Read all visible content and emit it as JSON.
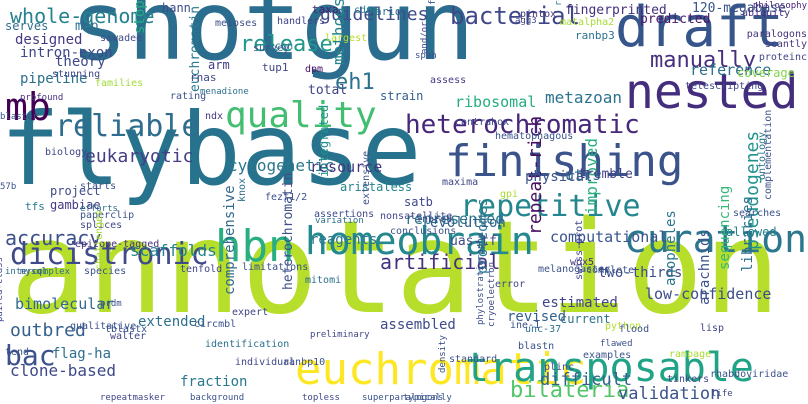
{
  "title": "",
  "words": [
    {
      "text": "shotgun",
      "color": "#2b6d8e",
      "vertical": false
    },
    {
      "text": "annotation",
      "color": "#b7de2a",
      "vertical": false
    },
    {
      "text": "flybase",
      "color": "#27738d",
      "vertical": false
    },
    {
      "text": "draft",
      "color": "#36558b",
      "vertical": false
    },
    {
      "text": "nested",
      "color": "#432d7c",
      "vertical": false
    },
    {
      "text": "finishing",
      "color": "#3a538b",
      "vertical": false
    },
    {
      "text": "heterochromatic",
      "color": "#46277a",
      "vertical": false
    },
    {
      "text": "homeobrain",
      "color": "#23898e",
      "vertical": false
    },
    {
      "text": "euchromatic",
      "color": "#fde725",
      "vertical": false
    },
    {
      "text": "transposable",
      "color": "#20a386",
      "vertical": false
    },
    {
      "text": "curation",
      "color": "#2a778e",
      "vertical": false
    },
    {
      "text": "hbn",
      "color": "#28ae80",
      "vertical": false
    },
    {
      "text": "dicistronic",
      "color": "#3e4a89",
      "vertical": false
    },
    {
      "text": "quality",
      "color": "#42be71",
      "vertical": false
    },
    {
      "text": "reliable",
      "color": "#2e6d8e",
      "vertical": false
    },
    {
      "text": "whole-genome",
      "color": "#26828e",
      "vertical": false
    },
    {
      "text": "repetitive",
      "color": "#24868e",
      "vertical": false
    },
    {
      "text": "release",
      "color": "#1f978b",
      "vertical": false
    },
    {
      "text": "bacterial",
      "color": "#3f4788",
      "vertical": false
    },
    {
      "text": "manually",
      "color": "#472f7d",
      "vertical": false
    },
    {
      "text": "mb",
      "color": "#440154",
      "vertical": false
    },
    {
      "text": "accuracy",
      "color": "#3c508b",
      "vertical": false
    },
    {
      "text": "artificial",
      "color": "#46307e",
      "vertical": false
    },
    {
      "text": "bac",
      "color": "#3b528b",
      "vertical": false
    },
    {
      "text": "guidelines",
      "color": "#3e4c8a",
      "vertical": false
    },
    {
      "text": "eukaryotic",
      "color": "#433e85",
      "vertical": false
    },
    {
      "text": "cytogenetic",
      "color": "#2a788e",
      "vertical": false
    },
    {
      "text": "metazoan",
      "color": "#2c728e",
      "vertical": false
    },
    {
      "text": "scaffolds",
      "color": "#25848e",
      "vertical": false
    },
    {
      "text": "computational",
      "color": "#3a548c",
      "vertical": false
    },
    {
      "text": "bimolecular",
      "color": "#31688e",
      "vertical": false
    },
    {
      "text": "pseudogenes",
      "color": "#20928c",
      "vertical": true
    },
    {
      "text": "bilateria",
      "color": "#52c569",
      "vertical": false
    },
    {
      "text": "validation",
      "color": "#3b528b",
      "vertical": false
    },
    {
      "text": "difficult",
      "color": "#34608d",
      "vertical": false
    },
    {
      "text": "clone-based",
      "color": "#3e4989",
      "vertical": false
    },
    {
      "text": "outbred",
      "color": "#355f8d",
      "vertical": false
    },
    {
      "text": "flag-ha",
      "color": "#2e6e8e",
      "vertical": false
    },
    {
      "text": "theory",
      "color": "#3f4788",
      "vertical": false
    },
    {
      "text": "eh1",
      "color": "#2c718e",
      "vertical": false
    },
    {
      "text": "reference",
      "color": "#2d708e",
      "vertical": false
    },
    {
      "text": "resource",
      "color": "#453781",
      "vertical": false
    },
    {
      "text": "methods",
      "color": "#25858e",
      "vertical": true
    },
    {
      "text": "ribosomal",
      "color": "#25ac82",
      "vertical": false
    },
    {
      "text": "utrs",
      "color": "#2f6b8e",
      "vertical": false
    },
    {
      "text": "improved",
      "color": "#29af7f",
      "vertical": true
    },
    {
      "text": "represented",
      "color": "#2a768e",
      "vertical": false
    },
    {
      "text": "repeat-rich",
      "color": "#471063",
      "vertical": true
    },
    {
      "text": "extended",
      "color": "#2d708e",
      "vertical": false
    },
    {
      "text": "assembled",
      "color": "#3e4a89",
      "vertical": false
    },
    {
      "text": "two-thirds",
      "color": "#3e4c8a",
      "vertical": false
    },
    {
      "text": "estimated",
      "color": "#414487",
      "vertical": false
    },
    {
      "text": "low-confidence",
      "color": "#3d4d8a",
      "vertical": false
    },
    {
      "text": "sequencing",
      "color": "#35b779",
      "vertical": true
    },
    {
      "text": "libraries",
      "color": "#2e6f8e",
      "vertical": true
    },
    {
      "text": "arachnids",
      "color": "#3b528b",
      "vertical": true
    },
    {
      "text": "anopheles",
      "color": "#2a768e",
      "vertical": true
    },
    {
      "text": "proteomes",
      "color": "#29798e",
      "vertical": true
    },
    {
      "text": "heterochromatin",
      "color": "#3d4e8a",
      "vertical": true
    },
    {
      "text": "integrated",
      "color": "#20928c",
      "vertical": true
    },
    {
      "text": "current",
      "color": "#2c738e",
      "vertical": false
    },
    {
      "text": "revised",
      "color": "#34618d",
      "vertical": false
    },
    {
      "text": "fraction",
      "color": "#2a788e",
      "vertical": false
    },
    {
      "text": "comprehensive",
      "color": "#31688e",
      "vertical": true
    },
    {
      "text": "evolution",
      "color": "#34618d",
      "vertical": false
    },
    {
      "text": "satb",
      "color": "#3f4889",
      "vertical": false
    },
    {
      "text": "aristaless",
      "color": "#25838e",
      "vertical": false
    },
    {
      "text": "physical",
      "color": "#3b528b",
      "vertical": false
    },
    {
      "text": "tremble",
      "color": "#404387",
      "vertical": false
    },
    {
      "text": "total",
      "color": "#404588",
      "vertical": false
    },
    {
      "text": "arm",
      "color": "#433d84",
      "vertical": false
    },
    {
      "text": "euchromatin",
      "color": "#2a788e",
      "vertical": true
    },
    {
      "text": "stop-codon",
      "color": "#26ad81",
      "vertical": true
    },
    {
      "text": "designed",
      "color": "#443983",
      "vertical": false
    },
    {
      "text": "intron-exon",
      "color": "#3f4889",
      "vertical": false
    },
    {
      "text": "pipeline",
      "color": "#2d708e",
      "vertical": false
    },
    {
      "text": "fingerprinted",
      "color": "#46307e",
      "vertical": false
    },
    {
      "text": "120-megabase",
      "color": "#3a538b",
      "vertical": false
    },
    {
      "text": "predicted",
      "color": "#48186a",
      "vertical": false
    },
    {
      "text": "coverage",
      "color": "#84d44b",
      "vertical": false
    },
    {
      "text": "project",
      "color": "#3e4c8a",
      "vertical": false
    },
    {
      "text": "gambiae",
      "color": "#443983",
      "vertical": false
    },
    {
      "text": "reagents",
      "color": "#2a788e",
      "vertical": false
    },
    {
      "text": "uas-tf",
      "color": "#3f4788",
      "vertical": false
    },
    {
      "text": "allowed",
      "color": "#26828e",
      "vertical": false
    },
    {
      "text": "map",
      "color": "#2e6f8e",
      "vertical": false
    },
    {
      "text": "serves",
      "color": "#2e6e8e",
      "vertical": false
    },
    {
      "text": "hann",
      "color": "#3e4a89",
      "vertical": false
    },
    {
      "text": "taxa",
      "color": "#482475",
      "vertical": false
    },
    {
      "text": "arid",
      "color": "#2c728e",
      "vertical": false
    },
    {
      "text": "rnas",
      "color": "#3f4788",
      "vertical": false
    },
    {
      "text": "tup1",
      "color": "#414487",
      "vertical": false
    },
    {
      "text": "strain",
      "color": "#355f8d",
      "vertical": false
    },
    {
      "text": "assess",
      "color": "#433e85",
      "vertical": false
    },
    {
      "text": "paralogons",
      "color": "#46327e",
      "vertical": false
    },
    {
      "text": "proteinc",
      "color": "#3f4788",
      "vertical": false
    },
    {
      "text": "ubiquity",
      "color": "#46327e",
      "vertical": false
    },
    {
      "text": "scantly",
      "color": "#453882",
      "vertical": false
    },
    {
      "text": "philosophy",
      "color": "#482576",
      "vertical": false
    },
    {
      "text": "telescripting",
      "color": "#3f4788",
      "vertical": false
    },
    {
      "text": "ontology",
      "color": "#2a788e",
      "vertical": true
    },
    {
      "text": "complementation",
      "color": "#3b528b",
      "vertical": true
    },
    {
      "text": "searches",
      "color": "#3b528b",
      "vertical": false
    },
    {
      "text": "ranbp3",
      "color": "#2c728e",
      "vertical": false
    },
    {
      "text": "dpm",
      "color": "#471164",
      "vertical": false
    },
    {
      "text": "matalpha2",
      "color": "#a8db34",
      "vertical": false
    },
    {
      "text": "contrahox",
      "color": "#3f4889",
      "vertical": false
    },
    {
      "text": "hematophagous",
      "color": "#3b528b",
      "vertical": false
    },
    {
      "text": "ndx",
      "color": "#453781",
      "vertical": false
    },
    {
      "text": "recon",
      "color": "#2a788e",
      "vertical": false
    },
    {
      "text": "largest",
      "color": "#b5de2b",
      "vertical": false
    },
    {
      "text": "cdna",
      "color": "#26828e",
      "vertical": false
    },
    {
      "text": "pintox",
      "color": "#453781",
      "vertical": false
    },
    {
      "text": "handlers",
      "color": "#414487",
      "vertical": false
    },
    {
      "text": "meioses",
      "color": "#3d4d8a",
      "vertical": false
    },
    {
      "text": "sawadee",
      "color": "#3e4c8a",
      "vertical": false
    },
    {
      "text": "survey",
      "color": "#3b528b",
      "vertical": false
    },
    {
      "text": "families",
      "color": "#a0da39",
      "vertical": false
    },
    {
      "text": "stunning",
      "color": "#3f4788",
      "vertical": false
    },
    {
      "text": "profound",
      "color": "#46327e",
      "vertical": false
    },
    {
      "text": "rating",
      "color": "#3b528b",
      "vertical": false
    },
    {
      "text": "menadione",
      "color": "#2d708e",
      "vertical": false
    },
    {
      "text": "blaster",
      "color": "#3b528b",
      "vertical": false
    },
    {
      "text": "biology",
      "color": "#414487",
      "vertical": false
    },
    {
      "text": "starts",
      "color": "#3b528b",
      "vertical": false
    },
    {
      "text": "efforts",
      "color": "#2d708e",
      "vertical": false
    },
    {
      "text": "paperclip",
      "color": "#3b528b",
      "vertical": false
    },
    {
      "text": "splices",
      "color": "#3f4788",
      "vertical": false
    },
    {
      "text": "57b",
      "color": "#3b528b",
      "vertical": false
    },
    {
      "text": "tfs",
      "color": "#2a788e",
      "vertical": false
    },
    {
      "text": "fezf1/2",
      "color": "#3b528b",
      "vertical": false
    },
    {
      "text": "knox",
      "color": "#2d708e",
      "vertical": true
    },
    {
      "text": "maxima",
      "color": "#3f4788",
      "vertical": false
    },
    {
      "text": "gpi",
      "color": "#a8db34",
      "vertical": false
    },
    {
      "text": "inbred",
      "color": "#3b528b",
      "vertical": false
    },
    {
      "text": "nonsatellite",
      "color": "#3f4788",
      "vertical": false
    },
    {
      "text": "assertions",
      "color": "#3e4c8a",
      "vertical": false
    },
    {
      "text": "extensive",
      "color": "#3b528b",
      "vertical": true
    },
    {
      "text": "variation",
      "color": "#2d708e",
      "vertical": false
    },
    {
      "text": "conclusions",
      "color": "#3b528b",
      "vertical": false
    },
    {
      "text": "epitope-tagged",
      "color": "#46327e",
      "vertical": false
    },
    {
      "text": "challenges",
      "color": "#a8db34",
      "vertical": true
    },
    {
      "text": "mysql",
      "color": "#3b528b",
      "vertical": false
    },
    {
      "text": "intercomplex",
      "color": "#2d708e",
      "vertical": false
    },
    {
      "text": "species",
      "color": "#3b528b",
      "vertical": false
    },
    {
      "text": "tenfold",
      "color": "#3f4788",
      "vertical": false
    },
    {
      "text": "limitations",
      "color": "#3b528b",
      "vertical": false
    },
    {
      "text": "mitomi",
      "color": "#2d708e",
      "vertical": false
    },
    {
      "text": "preliminary",
      "color": "#3f4788",
      "vertical": false
    },
    {
      "text": "melanogaster",
      "color": "#3b528b",
      "vertical": false
    },
    {
      "text": "wox5",
      "color": "#46327e",
      "vertical": false
    },
    {
      "text": "-complete",
      "color": "#3b528b",
      "vertical": false
    },
    {
      "text": "error",
      "color": "#3f4788",
      "vertical": false
    },
    {
      "text": "blastn",
      "color": "#3b528b",
      "vertical": false
    },
    {
      "text": "unc-37",
      "color": "#2d708e",
      "vertical": false
    },
    {
      "text": "ine-1",
      "color": "#3b528b",
      "vertical": false
    },
    {
      "text": "lisp",
      "color": "#3f4788",
      "vertical": false
    },
    {
      "text": "python",
      "color": "#b5de2b",
      "vertical": false
    },
    {
      "text": "flood",
      "color": "#3b528b",
      "vertical": false
    },
    {
      "text": "flawed",
      "color": "#3b528b",
      "vertical": false
    },
    {
      "text": "swiss-prot",
      "color": "#3f4788",
      "vertical": true
    },
    {
      "text": "expert",
      "color": "#3f4788",
      "vertical": false
    },
    {
      "text": "circmbl",
      "color": "#3b528b",
      "vertical": false
    },
    {
      "text": "identification",
      "color": "#2d708e",
      "vertical": false
    },
    {
      "text": "prdm",
      "color": "#3b528b",
      "vertical": false
    },
    {
      "text": "walter",
      "color": "#3f4788",
      "vertical": false
    },
    {
      "text": "qualitative",
      "color": "#3b528b",
      "vertical": false
    },
    {
      "text": "tend",
      "color": "#3b528b",
      "vertical": false
    },
    {
      "text": "paired-class",
      "color": "#3f4788",
      "vertical": true
    },
    {
      "text": "tblastx",
      "color": "#3b528b",
      "vertical": false
    },
    {
      "text": "ranbp10",
      "color": "#3b528b",
      "vertical": false
    },
    {
      "text": "individual",
      "color": "#3f4788",
      "vertical": false
    },
    {
      "text": "standard",
      "color": "#3b528b",
      "vertical": false
    },
    {
      "text": "plinc",
      "color": "#3f4788",
      "vertical": false
    },
    {
      "text": "examples",
      "color": "#3b528b",
      "vertical": false
    },
    {
      "text": "rampage",
      "color": "#a8db34",
      "vertical": false
    },
    {
      "text": "tinkers",
      "color": "#3f4788",
      "vertical": false
    },
    {
      "text": "rhabdoviridae",
      "color": "#3b528b",
      "vertical": false
    },
    {
      "text": "repeatmasker",
      "color": "#3f4788",
      "vertical": false
    },
    {
      "text": "background",
      "color": "#3b528b",
      "vertical": false
    },
    {
      "text": "topless",
      "color": "#3f4788",
      "vertical": false
    },
    {
      "text": "superparalogons",
      "color": "#3b528b",
      "vertical": false
    },
    {
      "text": "typically",
      "color": "#3b528b",
      "vertical": false
    },
    {
      "text": "life",
      "color": "#3f4788",
      "vertical": false
    },
    {
      "text": "density",
      "color": "#3b528b",
      "vertical": true
    },
    {
      "text": "cryoelectron",
      "color": "#3f4788",
      "vertical": true
    },
    {
      "text": "phylostratigraphy",
      "color": "#3b528b",
      "vertical": true
    },
    {
      "text": "read-through",
      "color": "#2d708e",
      "vertical": true
    },
    {
      "text": "frequency",
      "color": "#3b528b",
      "vertical": true
    },
    {
      "text": "and/or",
      "color": "#3f4788",
      "vertical": true
    },
    {
      "text": "span",
      "color": "#3b528b",
      "vertical": false
    },
    {
      "text": "agg3",
      "color": "#3f4788",
      "vertical": false
    }
  ]
}
